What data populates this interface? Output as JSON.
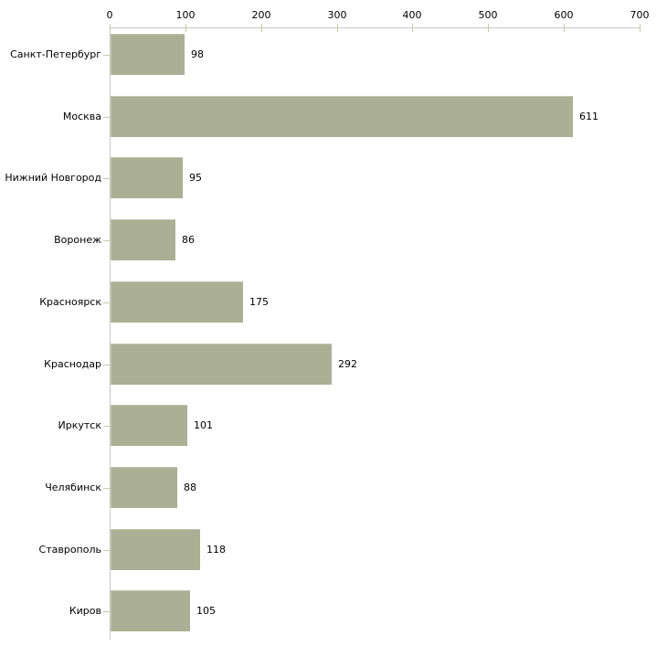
{
  "chart_data": {
    "type": "bar",
    "orientation": "horizontal",
    "title": "",
    "xlabel": "",
    "ylabel": "",
    "categories": [
      "Санкт-Петербург",
      "Москва",
      "Нижний Новгород",
      "Воронеж",
      "Красноярск",
      "Краснодар",
      "Иркутск",
      "Челябинск",
      "Ставрополь",
      "Киров"
    ],
    "values": [
      98,
      611,
      95,
      86,
      175,
      292,
      101,
      88,
      118,
      105
    ],
    "value_labels": [
      "98",
      "611",
      "95",
      "86",
      "175",
      "292",
      "101",
      "88",
      "118",
      "105"
    ],
    "xlim": [
      0,
      700
    ],
    "x_ticks": [
      0,
      100,
      200,
      300,
      400,
      500,
      600,
      700
    ],
    "x_tick_labels": [
      "0",
      "100",
      "200",
      "300",
      "400",
      "500",
      "600",
      "700"
    ],
    "grid": false,
    "legend": null,
    "colors": {
      "bar_fill": "#abb094",
      "axis_line": "#c6c6c6",
      "tick_mark": "#c9caa2",
      "text": "#000000",
      "background": "#ffffff"
    }
  }
}
